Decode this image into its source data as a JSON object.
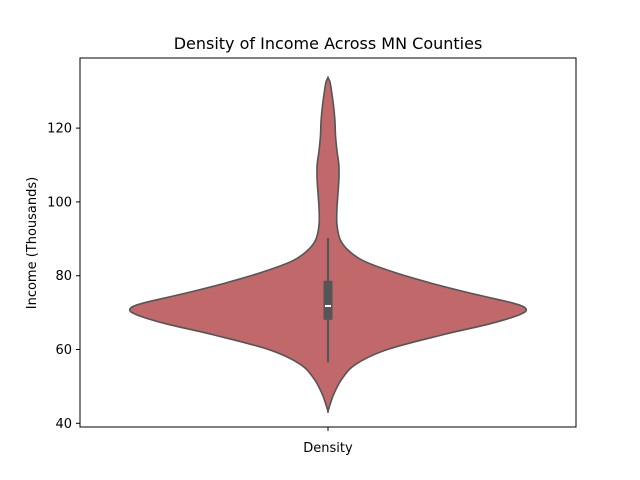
{
  "chart_data": {
    "type": "violin",
    "title": "Density of Income Across MN Counties",
    "xlabel": "",
    "ylabel": "Income (Thousands)",
    "categories": [
      "Density"
    ],
    "ylim": [
      39,
      139
    ],
    "yticks": [
      40,
      60,
      80,
      100,
      120
    ],
    "grid": false,
    "legend": "none",
    "violin": {
      "category": "Density",
      "color": "#c0686a",
      "edge_color": "#555555",
      "density_profile": [
        {
          "y": 43.2,
          "width": 0.0
        },
        {
          "y": 45,
          "width": 0.01
        },
        {
          "y": 48,
          "width": 0.03
        },
        {
          "y": 52,
          "width": 0.07
        },
        {
          "y": 56,
          "width": 0.14
        },
        {
          "y": 60,
          "width": 0.3
        },
        {
          "y": 64,
          "width": 0.58
        },
        {
          "y": 67,
          "width": 0.82
        },
        {
          "y": 69.5,
          "width": 0.97
        },
        {
          "y": 71,
          "width": 1.0
        },
        {
          "y": 72.5,
          "width": 0.94
        },
        {
          "y": 75,
          "width": 0.74
        },
        {
          "y": 78,
          "width": 0.52
        },
        {
          "y": 81,
          "width": 0.33
        },
        {
          "y": 84,
          "width": 0.18
        },
        {
          "y": 87,
          "width": 0.1
        },
        {
          "y": 90,
          "width": 0.06
        },
        {
          "y": 94,
          "width": 0.045
        },
        {
          "y": 98,
          "width": 0.045
        },
        {
          "y": 102,
          "width": 0.05
        },
        {
          "y": 106,
          "width": 0.055
        },
        {
          "y": 110,
          "width": 0.055
        },
        {
          "y": 114,
          "width": 0.045
        },
        {
          "y": 118,
          "width": 0.038
        },
        {
          "y": 122,
          "width": 0.035
        },
        {
          "y": 126,
          "width": 0.028
        },
        {
          "y": 130,
          "width": 0.018
        },
        {
          "y": 132.5,
          "width": 0.01
        },
        {
          "y": 133.7,
          "width": 0.0
        }
      ],
      "box": {
        "q1": 68.2,
        "median": 71.8,
        "q3": 78.5,
        "whisker_low": 56.5,
        "whisker_high": 90.2
      }
    }
  }
}
